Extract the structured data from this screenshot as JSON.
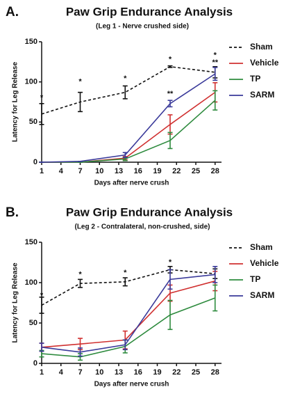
{
  "chart_data": [
    {
      "type": "line",
      "panel": "A.",
      "title": "Paw Grip Endurance Analysis",
      "subtitle": "(Leg 1 - Nerve crushed side)",
      "x_label": "Days after nerve crush",
      "y_label": "Latency for Leg Release",
      "x": [
        1,
        7,
        14,
        21,
        28
      ],
      "xlim": [
        1,
        29
      ],
      "xticks": [
        1,
        4,
        7,
        10,
        13,
        16,
        19,
        22,
        25,
        28
      ],
      "ylim": [
        0,
        150
      ],
      "yticks": [
        0,
        50,
        100,
        150
      ],
      "grid": false,
      "series": [
        {
          "name": "Sham",
          "color": "#111111",
          "linestyle": "dashed",
          "values": [
            60,
            75,
            87,
            119,
            112
          ],
          "errors": [
            13,
            12,
            8,
            1,
            7
          ]
        },
        {
          "name": "Vehicle",
          "color": "#d03030",
          "linestyle": "solid",
          "values": [
            0,
            0,
            5,
            47,
            87
          ],
          "errors": [
            0,
            0,
            2,
            12,
            12
          ]
        },
        {
          "name": "TP",
          "color": "#2e8b3e",
          "linestyle": "solid",
          "values": [
            0,
            0,
            4,
            27,
            77
          ],
          "errors": [
            0,
            0,
            2,
            10,
            12
          ]
        },
        {
          "name": "SARM",
          "color": "#3a3a9a",
          "linestyle": "solid",
          "values": [
            0,
            1,
            9,
            73,
            110
          ],
          "errors": [
            0,
            0,
            3,
            4,
            8
          ]
        }
      ],
      "annotations": [
        {
          "x": 1,
          "y": 80,
          "text": "*"
        },
        {
          "x": 7,
          "y": 100,
          "text": "*"
        },
        {
          "x": 14,
          "y": 104,
          "text": "*"
        },
        {
          "x": 21,
          "y": 128,
          "text": "*"
        },
        {
          "x": 21,
          "y": 85,
          "text": "**"
        },
        {
          "x": 28,
          "y": 133,
          "text": "*"
        },
        {
          "x": 28,
          "y": 124,
          "text": "**"
        }
      ]
    },
    {
      "type": "line",
      "panel": "B.",
      "title": "Paw Grip Endurance Analysis",
      "subtitle": "(Leg 2 - Contralateral, non-crushed, side)",
      "x_label": "Days after nerve crush",
      "y_label": "Latency for Leg Release",
      "x": [
        1,
        7,
        14,
        21,
        28
      ],
      "xlim": [
        1,
        29
      ],
      "xticks": [
        1,
        4,
        7,
        10,
        13,
        16,
        19,
        22,
        25,
        28
      ],
      "ylim": [
        0,
        150
      ],
      "yticks": [
        0,
        50,
        100,
        150
      ],
      "grid": false,
      "series": [
        {
          "name": "Sham",
          "color": "#111111",
          "linestyle": "dashed",
          "values": [
            72,
            99,
            101,
            116,
            111
          ],
          "errors": [
            10,
            5,
            5,
            4,
            6
          ]
        },
        {
          "name": "Vehicle",
          "color": "#d03030",
          "linestyle": "solid",
          "values": [
            20,
            24,
            29,
            87,
            102
          ],
          "errors": [
            5,
            7,
            11,
            10,
            12
          ]
        },
        {
          "name": "TP",
          "color": "#2e8b3e",
          "linestyle": "solid",
          "values": [
            12,
            8,
            21,
            60,
            81
          ],
          "errors": [
            4,
            4,
            8,
            18,
            16
          ]
        },
        {
          "name": "SARM",
          "color": "#3a3a9a",
          "linestyle": "solid",
          "values": [
            20,
            14,
            23,
            104,
            110
          ],
          "errors": [
            5,
            5,
            6,
            12,
            10
          ]
        }
      ],
      "annotations": [
        {
          "x": 1,
          "y": 84,
          "text": "*"
        },
        {
          "x": 7,
          "y": 110,
          "text": "*"
        },
        {
          "x": 14,
          "y": 112,
          "text": "*"
        },
        {
          "x": 21,
          "y": 125,
          "text": "*"
        }
      ]
    }
  ]
}
